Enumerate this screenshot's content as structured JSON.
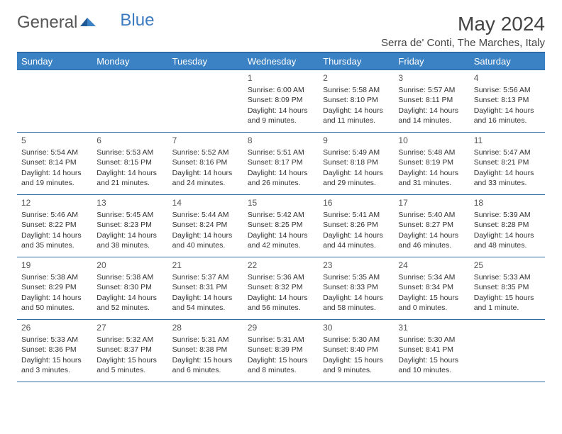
{
  "logo": {
    "text_a": "General",
    "text_b": "Blue"
  },
  "title": "May 2024",
  "location": "Serra de' Conti, The Marches, Italy",
  "colors": {
    "header_bg": "#3b82c4",
    "header_text": "#ffffff",
    "border": "#2f6aa8",
    "body_text": "#333333",
    "logo_gray": "#555555",
    "logo_blue": "#3b7bbf"
  },
  "weekdays": [
    "Sunday",
    "Monday",
    "Tuesday",
    "Wednesday",
    "Thursday",
    "Friday",
    "Saturday"
  ],
  "weeks": [
    [
      null,
      null,
      null,
      {
        "n": "1",
        "sunrise": "Sunrise: 6:00 AM",
        "sunset": "Sunset: 8:09 PM",
        "day1": "Daylight: 14 hours",
        "day2": "and 9 minutes."
      },
      {
        "n": "2",
        "sunrise": "Sunrise: 5:58 AM",
        "sunset": "Sunset: 8:10 PM",
        "day1": "Daylight: 14 hours",
        "day2": "and 11 minutes."
      },
      {
        "n": "3",
        "sunrise": "Sunrise: 5:57 AM",
        "sunset": "Sunset: 8:11 PM",
        "day1": "Daylight: 14 hours",
        "day2": "and 14 minutes."
      },
      {
        "n": "4",
        "sunrise": "Sunrise: 5:56 AM",
        "sunset": "Sunset: 8:13 PM",
        "day1": "Daylight: 14 hours",
        "day2": "and 16 minutes."
      }
    ],
    [
      {
        "n": "5",
        "sunrise": "Sunrise: 5:54 AM",
        "sunset": "Sunset: 8:14 PM",
        "day1": "Daylight: 14 hours",
        "day2": "and 19 minutes."
      },
      {
        "n": "6",
        "sunrise": "Sunrise: 5:53 AM",
        "sunset": "Sunset: 8:15 PM",
        "day1": "Daylight: 14 hours",
        "day2": "and 21 minutes."
      },
      {
        "n": "7",
        "sunrise": "Sunrise: 5:52 AM",
        "sunset": "Sunset: 8:16 PM",
        "day1": "Daylight: 14 hours",
        "day2": "and 24 minutes."
      },
      {
        "n": "8",
        "sunrise": "Sunrise: 5:51 AM",
        "sunset": "Sunset: 8:17 PM",
        "day1": "Daylight: 14 hours",
        "day2": "and 26 minutes."
      },
      {
        "n": "9",
        "sunrise": "Sunrise: 5:49 AM",
        "sunset": "Sunset: 8:18 PM",
        "day1": "Daylight: 14 hours",
        "day2": "and 29 minutes."
      },
      {
        "n": "10",
        "sunrise": "Sunrise: 5:48 AM",
        "sunset": "Sunset: 8:19 PM",
        "day1": "Daylight: 14 hours",
        "day2": "and 31 minutes."
      },
      {
        "n": "11",
        "sunrise": "Sunrise: 5:47 AM",
        "sunset": "Sunset: 8:21 PM",
        "day1": "Daylight: 14 hours",
        "day2": "and 33 minutes."
      }
    ],
    [
      {
        "n": "12",
        "sunrise": "Sunrise: 5:46 AM",
        "sunset": "Sunset: 8:22 PM",
        "day1": "Daylight: 14 hours",
        "day2": "and 35 minutes."
      },
      {
        "n": "13",
        "sunrise": "Sunrise: 5:45 AM",
        "sunset": "Sunset: 8:23 PM",
        "day1": "Daylight: 14 hours",
        "day2": "and 38 minutes."
      },
      {
        "n": "14",
        "sunrise": "Sunrise: 5:44 AM",
        "sunset": "Sunset: 8:24 PM",
        "day1": "Daylight: 14 hours",
        "day2": "and 40 minutes."
      },
      {
        "n": "15",
        "sunrise": "Sunrise: 5:42 AM",
        "sunset": "Sunset: 8:25 PM",
        "day1": "Daylight: 14 hours",
        "day2": "and 42 minutes."
      },
      {
        "n": "16",
        "sunrise": "Sunrise: 5:41 AM",
        "sunset": "Sunset: 8:26 PM",
        "day1": "Daylight: 14 hours",
        "day2": "and 44 minutes."
      },
      {
        "n": "17",
        "sunrise": "Sunrise: 5:40 AM",
        "sunset": "Sunset: 8:27 PM",
        "day1": "Daylight: 14 hours",
        "day2": "and 46 minutes."
      },
      {
        "n": "18",
        "sunrise": "Sunrise: 5:39 AM",
        "sunset": "Sunset: 8:28 PM",
        "day1": "Daylight: 14 hours",
        "day2": "and 48 minutes."
      }
    ],
    [
      {
        "n": "19",
        "sunrise": "Sunrise: 5:38 AM",
        "sunset": "Sunset: 8:29 PM",
        "day1": "Daylight: 14 hours",
        "day2": "and 50 minutes."
      },
      {
        "n": "20",
        "sunrise": "Sunrise: 5:38 AM",
        "sunset": "Sunset: 8:30 PM",
        "day1": "Daylight: 14 hours",
        "day2": "and 52 minutes."
      },
      {
        "n": "21",
        "sunrise": "Sunrise: 5:37 AM",
        "sunset": "Sunset: 8:31 PM",
        "day1": "Daylight: 14 hours",
        "day2": "and 54 minutes."
      },
      {
        "n": "22",
        "sunrise": "Sunrise: 5:36 AM",
        "sunset": "Sunset: 8:32 PM",
        "day1": "Daylight: 14 hours",
        "day2": "and 56 minutes."
      },
      {
        "n": "23",
        "sunrise": "Sunrise: 5:35 AM",
        "sunset": "Sunset: 8:33 PM",
        "day1": "Daylight: 14 hours",
        "day2": "and 58 minutes."
      },
      {
        "n": "24",
        "sunrise": "Sunrise: 5:34 AM",
        "sunset": "Sunset: 8:34 PM",
        "day1": "Daylight: 15 hours",
        "day2": "and 0 minutes."
      },
      {
        "n": "25",
        "sunrise": "Sunrise: 5:33 AM",
        "sunset": "Sunset: 8:35 PM",
        "day1": "Daylight: 15 hours",
        "day2": "and 1 minute."
      }
    ],
    [
      {
        "n": "26",
        "sunrise": "Sunrise: 5:33 AM",
        "sunset": "Sunset: 8:36 PM",
        "day1": "Daylight: 15 hours",
        "day2": "and 3 minutes."
      },
      {
        "n": "27",
        "sunrise": "Sunrise: 5:32 AM",
        "sunset": "Sunset: 8:37 PM",
        "day1": "Daylight: 15 hours",
        "day2": "and 5 minutes."
      },
      {
        "n": "28",
        "sunrise": "Sunrise: 5:31 AM",
        "sunset": "Sunset: 8:38 PM",
        "day1": "Daylight: 15 hours",
        "day2": "and 6 minutes."
      },
      {
        "n": "29",
        "sunrise": "Sunrise: 5:31 AM",
        "sunset": "Sunset: 8:39 PM",
        "day1": "Daylight: 15 hours",
        "day2": "and 8 minutes."
      },
      {
        "n": "30",
        "sunrise": "Sunrise: 5:30 AM",
        "sunset": "Sunset: 8:40 PM",
        "day1": "Daylight: 15 hours",
        "day2": "and 9 minutes."
      },
      {
        "n": "31",
        "sunrise": "Sunrise: 5:30 AM",
        "sunset": "Sunset: 8:41 PM",
        "day1": "Daylight: 15 hours",
        "day2": "and 10 minutes."
      },
      null
    ]
  ]
}
